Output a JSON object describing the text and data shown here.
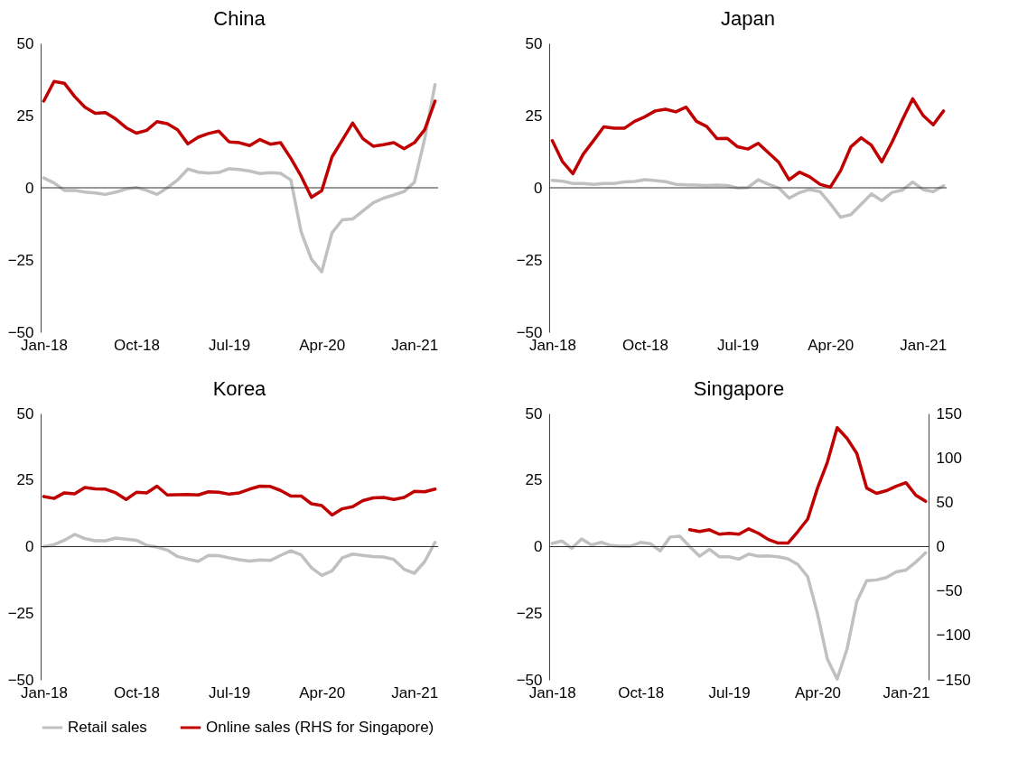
{
  "chart_data": [
    {
      "type": "line",
      "title": "China",
      "categories": [
        "Jan-18",
        null,
        null,
        null,
        null,
        null,
        null,
        null,
        null,
        "Oct-18",
        null,
        null,
        null,
        null,
        null,
        null,
        null,
        null,
        "Jul-19",
        null,
        null,
        null,
        null,
        null,
        null,
        null,
        null,
        "Apr-20",
        null,
        null,
        null,
        null,
        null,
        null,
        null,
        null,
        "Jan-21",
        null,
        null
      ],
      "ylim": [
        -50,
        50
      ],
      "yticks": [
        -50,
        -25,
        0,
        25,
        50
      ],
      "legend": "bottom",
      "ref_lines": [
        {
          "axis": "y",
          "value": 0
        }
      ],
      "series": [
        {
          "name": "Retail sales",
          "color": "#c0c0c0",
          "values": [
            3.4,
            1.7,
            -0.9,
            -0.9,
            -1.5,
            -1.8,
            -2.3,
            -1.5,
            -0.4,
            0.1,
            -0.9,
            -2.3,
            0,
            2.7,
            6.5,
            5.4,
            5.1,
            5.3,
            6.6,
            6.3,
            5.8,
            4.9,
            5.2,
            5,
            2.7,
            -15.3,
            -24.7,
            -29.1,
            -15.6,
            -11.1,
            -10.8,
            -8,
            -5.2,
            -3.6,
            -2.5,
            -1.3,
            1.9,
            17,
            35.7
          ]
        },
        {
          "name": "Online sales (RHS for Singapore)",
          "color": "#c00000",
          "values": [
            30,
            36.8,
            36.2,
            31.6,
            27.9,
            25.8,
            26,
            23.8,
            20.8,
            18.9,
            19.9,
            22.9,
            22.2,
            20.1,
            15.2,
            17.5,
            18.8,
            19.6,
            15.9,
            15.6,
            14.6,
            16.7,
            15.1,
            15.6,
            10.2,
            4,
            -3.3,
            -1,
            10.7,
            16.5,
            22.4,
            17,
            14.4,
            14.9,
            15.6,
            13.5,
            15.6,
            20.1,
            30
          ]
        }
      ]
    },
    {
      "type": "line",
      "title": "Japan",
      "categories": [
        "Jan-18",
        null,
        null,
        null,
        null,
        null,
        null,
        null,
        null,
        "Oct-18",
        null,
        null,
        null,
        null,
        null,
        null,
        null,
        null,
        "Jul-19",
        null,
        null,
        null,
        null,
        null,
        null,
        null,
        null,
        "Apr-20",
        null,
        null,
        null,
        null,
        null,
        null,
        null,
        null,
        "Jan-21",
        null,
        null
      ],
      "ylim": [
        -50,
        50
      ],
      "yticks": [
        -50,
        -25,
        0,
        25,
        50
      ],
      "legend": "bottom",
      "ref_lines": [
        {
          "axis": "y",
          "value": 0
        }
      ],
      "series": [
        {
          "name": "Retail sales",
          "color": "#c0c0c0",
          "values": [
            2.6,
            2.3,
            1.5,
            1.5,
            1.2,
            1.5,
            1.5,
            2,
            2.2,
            2.8,
            2.5,
            2.1,
            1.2,
            1,
            0.9,
            0.8,
            0.9,
            0.8,
            -0.1,
            0.1,
            2.8,
            1.2,
            -0.1,
            -3.6,
            -1.7,
            -0.6,
            -1.3,
            -5.5,
            -10.2,
            -9.3,
            -5.7,
            -2.1,
            -4.5,
            -1.6,
            -0.8,
            2,
            -0.6,
            -1.3,
            0.7
          ]
        },
        {
          "name": "Online sales (RHS for Singapore)",
          "color": "#c00000",
          "values": [
            16.3,
            9,
            4.9,
            11.6,
            16.3,
            21.1,
            20.6,
            20.6,
            23,
            24.6,
            26.6,
            27.2,
            26.3,
            27.9,
            23,
            21.2,
            17,
            17.1,
            14.2,
            13.4,
            15.4,
            12.1,
            8.8,
            2.8,
            5.4,
            3.8,
            1.2,
            0.2,
            5.9,
            14.2,
            17.3,
            14.7,
            9,
            15.8,
            23.5,
            30.8,
            25.1,
            21.8,
            26.6
          ]
        }
      ]
    },
    {
      "type": "line",
      "title": "Korea",
      "categories": [
        "Jan-18",
        null,
        null,
        null,
        null,
        null,
        null,
        null,
        null,
        "Oct-18",
        null,
        null,
        null,
        null,
        null,
        null,
        null,
        null,
        "Jul-19",
        null,
        null,
        null,
        null,
        null,
        null,
        null,
        null,
        "Apr-20",
        null,
        null,
        null,
        null,
        null,
        null,
        null,
        null,
        "Jan-21",
        null,
        null
      ],
      "ylim": [
        -50,
        50
      ],
      "yticks": [
        -50,
        -25,
        0,
        25,
        50
      ],
      "legend": "bottom",
      "ref_lines": [
        {
          "axis": "y",
          "value": 0
        }
      ],
      "series": [
        {
          "name": "Retail sales",
          "color": "#c0c0c0",
          "values": [
            0,
            0.7,
            2.4,
            4.6,
            3,
            2.2,
            2.2,
            3.2,
            2.8,
            2.4,
            0.5,
            -0.2,
            -1.3,
            -3.7,
            -4.7,
            -5.5,
            -3.3,
            -3.4,
            -4.2,
            -4.9,
            -5.4,
            -5,
            -5.2,
            -3.3,
            -1.6,
            -3.1,
            -7.9,
            -10.8,
            -9.1,
            -4.2,
            -2.8,
            -3.3,
            -3.7,
            -3.9,
            -4.8,
            -8.5,
            -10,
            -5.6,
            1.6
          ]
        },
        {
          "name": "Online sales (RHS for Singapore)",
          "color": "#c00000",
          "values": [
            18.8,
            18.1,
            20.2,
            19.8,
            22.2,
            21.7,
            21.6,
            20.2,
            17.7,
            20.4,
            20.2,
            22.7,
            19.4,
            19.5,
            19.6,
            19.4,
            20.6,
            20.4,
            19.7,
            20.2,
            21.6,
            22.7,
            22.6,
            21.1,
            19,
            19,
            16.1,
            15.4,
            11.9,
            14.2,
            15,
            17.3,
            18.3,
            18.5,
            17.7,
            18.5,
            20.8,
            20.6,
            21.6
          ]
        }
      ]
    },
    {
      "type": "line",
      "title": "Singapore",
      "categories": [
        "Jan-18",
        null,
        null,
        null,
        null,
        null,
        null,
        null,
        null,
        "Oct-18",
        null,
        null,
        null,
        null,
        null,
        null,
        null,
        null,
        "Jul-19",
        null,
        null,
        null,
        null,
        null,
        null,
        null,
        null,
        "Apr-20",
        null,
        null,
        null,
        null,
        null,
        null,
        null,
        null,
        "Jan-21",
        null,
        null
      ],
      "ylim": [
        -50,
        50
      ],
      "yticks": [
        -50,
        -25,
        0,
        25,
        50
      ],
      "y2lim": [
        -150,
        150
      ],
      "y2ticks": [
        -150,
        -100,
        -50,
        0,
        50,
        100,
        150
      ],
      "legend": "bottom",
      "ref_lines": [
        {
          "axis": "y",
          "value": 0
        }
      ],
      "series": [
        {
          "name": "Retail sales",
          "color": "#c0c0c0",
          "values": [
            1.2,
            2.1,
            -0.6,
            2.9,
            0.6,
            1.6,
            0.4,
            0.2,
            0.2,
            1.6,
            1.1,
            -1.6,
            3.6,
            3.9,
            0,
            -3.6,
            -1,
            -3.8,
            -3.8,
            -4.7,
            -2.8,
            -3.6,
            -3.5,
            -3.8,
            -4.6,
            -6.7,
            -11.3,
            -25.2,
            -42.2,
            -49.7,
            -38.5,
            -20.6,
            -12.8,
            -12.5,
            -11.6,
            -9.5,
            -8.8,
            -5.8,
            -2.3
          ]
        },
        {
          "name": "Online sales (RHS for Singapore)",
          "color": "#c00000",
          "axis": "y2",
          "values": [
            null,
            null,
            null,
            null,
            null,
            null,
            null,
            null,
            null,
            null,
            null,
            null,
            null,
            null,
            19,
            17,
            19,
            14,
            15,
            14,
            20,
            15,
            8,
            4,
            4,
            17,
            31,
            66,
            95,
            134,
            122,
            105,
            66,
            60,
            63,
            68,
            72,
            58,
            51
          ]
        }
      ]
    }
  ]
}
